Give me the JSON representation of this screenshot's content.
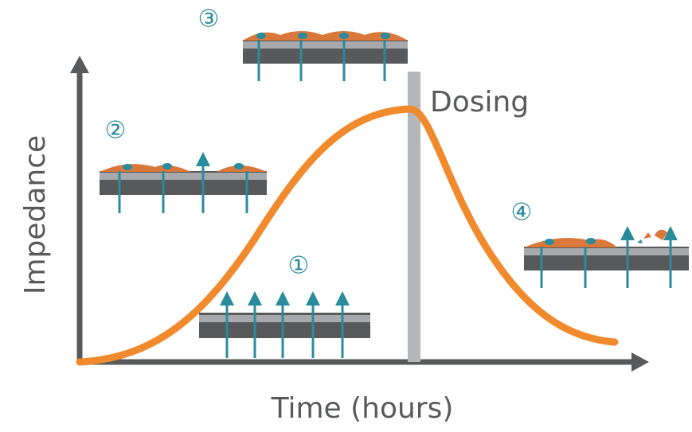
{
  "axes": {
    "y_label": "Impedance",
    "x_label": "Time (hours)"
  },
  "annotation": "Dosing",
  "stages": [
    {
      "label": "①"
    },
    {
      "label": "②"
    },
    {
      "label": "③"
    },
    {
      "label": "④"
    }
  ]
}
